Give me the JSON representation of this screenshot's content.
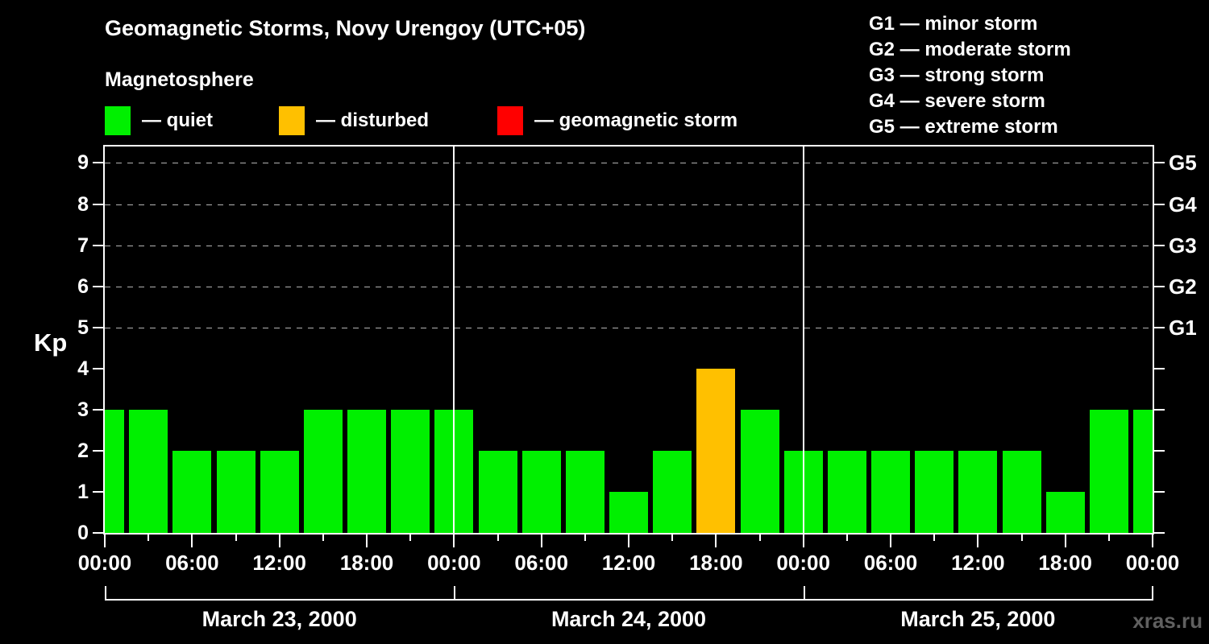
{
  "header": {
    "title": "Geomagnetic Storms, Novy Urengoy (UTC+05)",
    "subtitle": "Magnetosphere"
  },
  "legend": {
    "items": [
      {
        "name": "quiet",
        "label": "— quiet",
        "color": "#00f000"
      },
      {
        "name": "disturbed",
        "label": "— disturbed",
        "color": "#ffc000"
      },
      {
        "name": "storm",
        "label": "— geomagnetic storm",
        "color": "#ff0000"
      }
    ]
  },
  "g_scale_legend": {
    "items": [
      "G1 — minor storm",
      "G2 — moderate storm",
      "G3 — strong storm",
      "G4 — severe storm",
      "G5 — extreme storm"
    ]
  },
  "watermark": "xras.ru",
  "chart_data": {
    "type": "bar",
    "title": "Geomagnetic Storms, Novy Urengoy (UTC+05)",
    "ylabel": "Kp",
    "ylim": [
      0,
      9.4
    ],
    "yticks": [
      "0",
      "1",
      "2",
      "3",
      "4",
      "5",
      "6",
      "7",
      "8",
      "9"
    ],
    "grid": "dashed horizontal lines at storm levels only",
    "grid_levels": [
      5,
      6,
      7,
      8,
      9
    ],
    "right_axis_labels": [
      {
        "value": 5,
        "label": "G1"
      },
      {
        "value": 6,
        "label": "G2"
      },
      {
        "value": 7,
        "label": "G3"
      },
      {
        "value": 8,
        "label": "G4"
      },
      {
        "value": 9,
        "label": "G5"
      }
    ],
    "interval_hours": 3,
    "x_time_label_cycle": [
      "00:00",
      "06:00",
      "12:00",
      "18:00"
    ],
    "days": [
      {
        "date": "March 23, 2000",
        "kp": [
          3,
          3,
          2,
          2,
          2,
          3,
          3,
          3
        ]
      },
      {
        "date": "March 24, 2000",
        "kp": [
          3,
          2,
          2,
          2,
          1,
          2,
          4,
          3
        ]
      },
      {
        "date": "March 25, 2000",
        "kp": [
          2,
          2,
          2,
          2,
          2,
          2,
          1,
          3
        ]
      }
    ],
    "partial_next_day_kp": 3,
    "bar_colors": {
      "quiet": "#00f000",
      "disturbed": "#ffc000",
      "storm": "#ff0000"
    },
    "color_thresholds": {
      "quiet_max_kp": 3,
      "disturbed_kp": 4,
      "storm_min_kp": 5
    },
    "legend_position": "top"
  }
}
